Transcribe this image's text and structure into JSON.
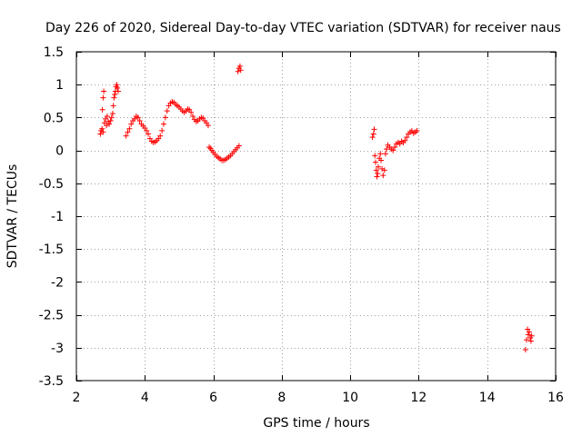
{
  "chart_data": {
    "type": "scatter",
    "title": "Day 226 of 2020, Sidereal Day-to-day VTEC variation (SDTVAR) for receiver naus",
    "xlabel": "GPS time / hours",
    "ylabel": "SDTVAR / TECUs",
    "xlim": [
      2,
      16
    ],
    "ylim": [
      -3.5,
      1.5
    ],
    "xticks": [
      2,
      4,
      6,
      8,
      10,
      12,
      14,
      16
    ],
    "xtick_labels": [
      "2",
      "4",
      "6",
      "8",
      "10",
      "12",
      "14",
      "16"
    ],
    "yticks": [
      1.5,
      1,
      0.5,
      0,
      -0.5,
      -1,
      -1.5,
      -2,
      -2.5,
      -3,
      -3.5
    ],
    "ytick_labels": [
      "1.5",
      "1",
      "0.5",
      "0",
      "-0.5",
      "-1",
      "-1.5",
      "-2",
      "-2.5",
      "-3",
      "-3.5"
    ],
    "grid": true,
    "marker": "+",
    "color": "#ff0000",
    "series": [
      {
        "name": "SDTVAR",
        "points": [
          [
            2.7,
            0.25
          ],
          [
            2.72,
            0.3
          ],
          [
            2.75,
            0.33
          ],
          [
            2.78,
            0.28
          ],
          [
            2.76,
            0.62
          ],
          [
            2.78,
            0.8
          ],
          [
            2.8,
            0.9
          ],
          [
            2.82,
            0.42
          ],
          [
            2.85,
            0.48
          ],
          [
            2.88,
            0.38
          ],
          [
            2.9,
            0.52
          ],
          [
            2.93,
            0.44
          ],
          [
            2.96,
            0.4
          ],
          [
            3.0,
            0.45
          ],
          [
            3.03,
            0.5
          ],
          [
            3.06,
            0.56
          ],
          [
            3.08,
            0.68
          ],
          [
            3.1,
            0.8
          ],
          [
            3.12,
            0.85
          ],
          [
            3.14,
            0.9
          ],
          [
            3.16,
            0.97
          ],
          [
            3.18,
            1.0
          ],
          [
            3.2,
            0.95
          ],
          [
            3.22,
            0.9
          ],
          [
            3.45,
            0.22
          ],
          [
            3.5,
            0.28
          ],
          [
            3.55,
            0.33
          ],
          [
            3.6,
            0.4
          ],
          [
            3.65,
            0.45
          ],
          [
            3.7,
            0.48
          ],
          [
            3.75,
            0.52
          ],
          [
            3.8,
            0.5
          ],
          [
            3.85,
            0.45
          ],
          [
            3.9,
            0.4
          ],
          [
            3.95,
            0.37
          ],
          [
            4.0,
            0.34
          ],
          [
            4.05,
            0.3
          ],
          [
            4.1,
            0.25
          ],
          [
            4.15,
            0.18
          ],
          [
            4.2,
            0.14
          ],
          [
            4.25,
            0.12
          ],
          [
            4.3,
            0.13
          ],
          [
            4.35,
            0.15
          ],
          [
            4.4,
            0.18
          ],
          [
            4.45,
            0.22
          ],
          [
            4.5,
            0.3
          ],
          [
            4.55,
            0.4
          ],
          [
            4.6,
            0.5
          ],
          [
            4.65,
            0.6
          ],
          [
            4.7,
            0.68
          ],
          [
            4.75,
            0.72
          ],
          [
            4.8,
            0.74
          ],
          [
            4.85,
            0.73
          ],
          [
            4.9,
            0.7
          ],
          [
            4.95,
            0.68
          ],
          [
            5.0,
            0.66
          ],
          [
            5.05,
            0.63
          ],
          [
            5.1,
            0.6
          ],
          [
            5.15,
            0.58
          ],
          [
            5.2,
            0.6
          ],
          [
            5.25,
            0.63
          ],
          [
            5.3,
            0.62
          ],
          [
            5.35,
            0.58
          ],
          [
            5.4,
            0.52
          ],
          [
            5.45,
            0.47
          ],
          [
            5.5,
            0.44
          ],
          [
            5.55,
            0.45
          ],
          [
            5.6,
            0.48
          ],
          [
            5.65,
            0.5
          ],
          [
            5.7,
            0.49
          ],
          [
            5.75,
            0.45
          ],
          [
            5.8,
            0.42
          ],
          [
            5.85,
            0.38
          ],
          [
            5.88,
            0.05
          ],
          [
            5.92,
            0.03
          ],
          [
            5.96,
            0.0
          ],
          [
            6.0,
            -0.03
          ],
          [
            6.05,
            -0.06
          ],
          [
            6.1,
            -0.09
          ],
          [
            6.15,
            -0.11
          ],
          [
            6.2,
            -0.13
          ],
          [
            6.25,
            -0.15
          ],
          [
            6.3,
            -0.15
          ],
          [
            6.35,
            -0.14
          ],
          [
            6.4,
            -0.12
          ],
          [
            6.45,
            -0.1
          ],
          [
            6.5,
            -0.08
          ],
          [
            6.55,
            -0.05
          ],
          [
            6.6,
            -0.02
          ],
          [
            6.65,
            0.01
          ],
          [
            6.7,
            0.04
          ],
          [
            6.75,
            0.07
          ],
          [
            6.72,
            1.2
          ],
          [
            6.75,
            1.25
          ],
          [
            6.78,
            1.28
          ],
          [
            6.8,
            1.22
          ],
          [
            10.65,
            0.2
          ],
          [
            10.68,
            0.25
          ],
          [
            10.7,
            0.32
          ],
          [
            10.72,
            -0.08
          ],
          [
            10.74,
            -0.18
          ],
          [
            10.76,
            -0.3
          ],
          [
            10.78,
            -0.4
          ],
          [
            10.8,
            -0.35
          ],
          [
            10.82,
            -0.25
          ],
          [
            10.85,
            -0.12
          ],
          [
            10.88,
            -0.05
          ],
          [
            10.9,
            -0.15
          ],
          [
            10.93,
            -0.28
          ],
          [
            10.96,
            -0.38
          ],
          [
            11.0,
            -0.3
          ],
          [
            11.03,
            -0.05
          ],
          [
            11.06,
            0.02
          ],
          [
            11.1,
            0.08
          ],
          [
            11.15,
            0.05
          ],
          [
            11.2,
            0.02
          ],
          [
            11.25,
            0.0
          ],
          [
            11.3,
            0.05
          ],
          [
            11.35,
            0.1
          ],
          [
            11.4,
            0.12
          ],
          [
            11.45,
            0.1
          ],
          [
            11.5,
            0.14
          ],
          [
            11.55,
            0.12
          ],
          [
            11.6,
            0.15
          ],
          [
            11.65,
            0.2
          ],
          [
            11.7,
            0.25
          ],
          [
            11.75,
            0.28
          ],
          [
            11.8,
            0.3
          ],
          [
            11.85,
            0.26
          ],
          [
            11.9,
            0.28
          ],
          [
            11.95,
            0.3
          ],
          [
            15.12,
            -3.03
          ],
          [
            15.15,
            -2.88
          ],
          [
            15.18,
            -2.72
          ],
          [
            15.2,
            -2.8
          ],
          [
            15.23,
            -2.76
          ],
          [
            15.26,
            -2.85
          ],
          [
            15.28,
            -2.9
          ],
          [
            15.3,
            -2.82
          ]
        ]
      }
    ]
  }
}
